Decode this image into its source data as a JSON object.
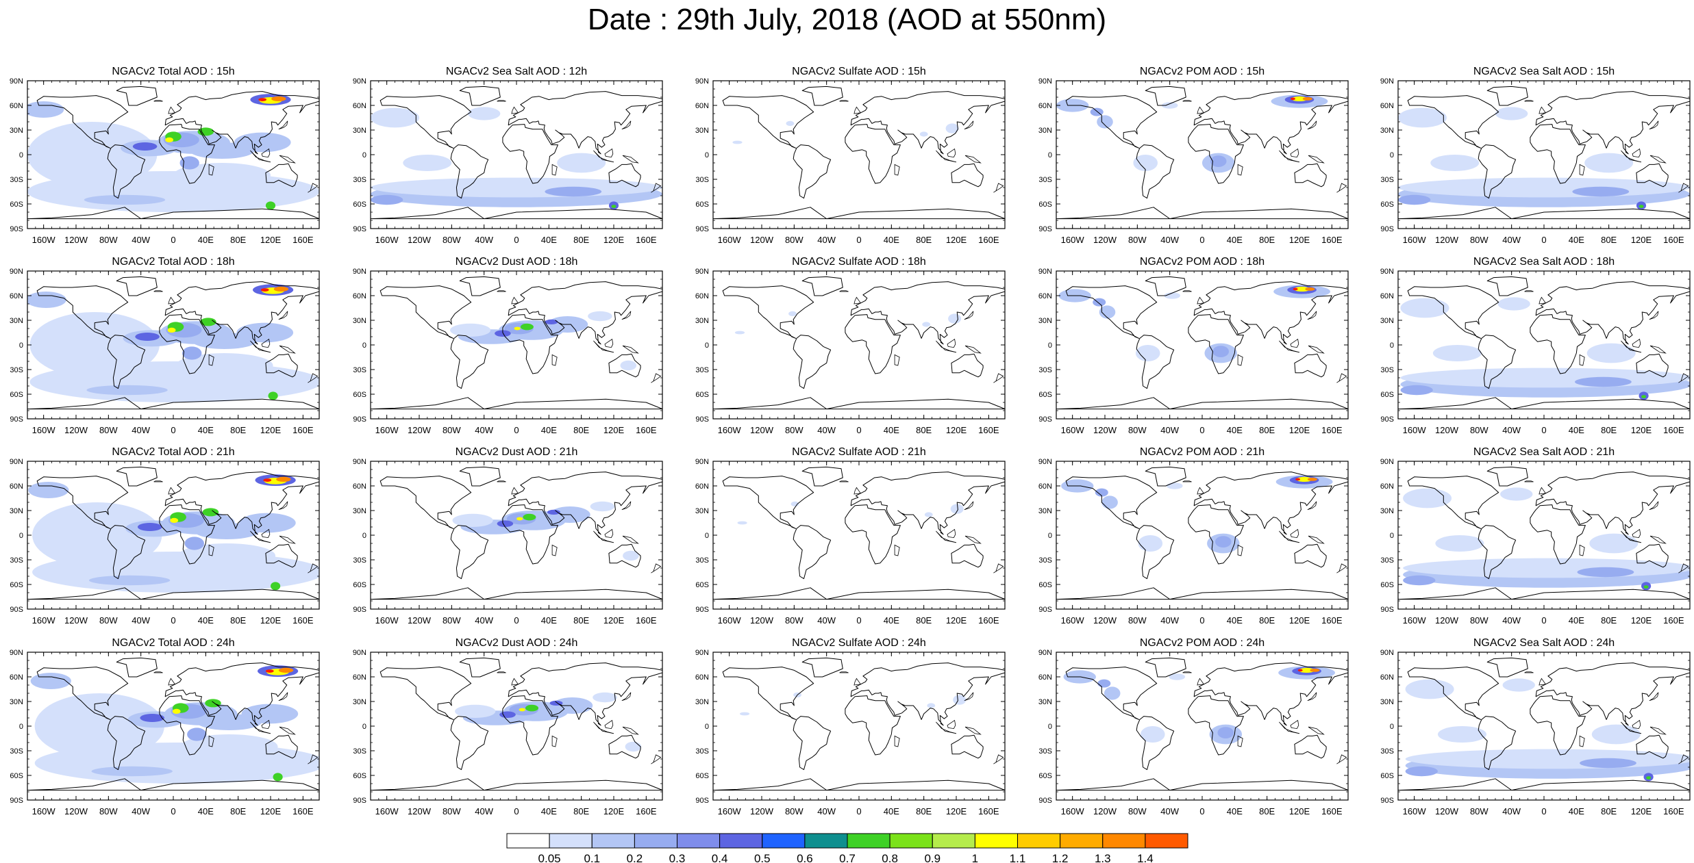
{
  "title": "Date : 29th July, 2018 (AOD at 550nm)",
  "lat_ticks": [
    "90N",
    "60N",
    "30N",
    "0",
    "30S",
    "60S",
    "90S"
  ],
  "lon_ticks": [
    "160W",
    "120W",
    "80W",
    "40W",
    "0",
    "40E",
    "80E",
    "120E",
    "160E"
  ],
  "lon_tick_values": [
    -160,
    -120,
    -80,
    -40,
    0,
    40,
    80,
    120,
    160
  ],
  "lat_tick_values": [
    90,
    60,
    30,
    0,
    -30,
    -60,
    -90
  ],
  "rows": [
    [
      "NGACv2 Total AOD : 15h",
      "NGACv2 Sea Salt  AOD : 12h",
      "NGACv2 Sulfate AOD : 15h",
      "NGACv2 POM AOD : 15h",
      "NGACv2 Sea Salt  AOD : 15h"
    ],
    [
      "NGACv2 Total AOD : 18h",
      "NGACv2 Dust AOD : 18h",
      "NGACv2 Sulfate AOD : 18h",
      "NGACv2 POM AOD : 18h",
      "NGACv2 Sea Salt  AOD : 18h"
    ],
    [
      "NGACv2 Total AOD : 21h",
      "NGACv2 Dust AOD : 21h",
      "NGACv2 Sulfate AOD : 21h",
      "NGACv2 POM AOD : 21h",
      "NGACv2 Sea Salt  AOD : 21h"
    ],
    [
      "NGACv2 Total AOD : 24h",
      "NGACv2 Dust AOD : 24h",
      "NGACv2 Sulfate AOD : 24h",
      "NGACv2 POM AOD : 24h",
      "NGACv2 Sea Salt  AOD : 24h"
    ]
  ],
  "colorbar": {
    "labels": [
      "0.05",
      "0.1",
      "0.2",
      "0.3",
      "0.4",
      "0.5",
      "0.6",
      "0.7",
      "0.8",
      "0.9",
      "1",
      "1.1",
      "1.2",
      "1.3",
      "1.4"
    ],
    "colors": [
      "#ffffff",
      "#d4e0fb",
      "#b3c6f5",
      "#97acf0",
      "#7f8deb",
      "#5d65e2",
      "#1f63ff",
      "#0e8f8f",
      "#3ed126",
      "#7be21a",
      "#b5ec4c",
      "#ffff00",
      "#ffcc00",
      "#ffab00",
      "#ff8800",
      "#ff5a00",
      "#ff1a00"
    ]
  },
  "map_colors": {
    "c1": "#d4e0fb",
    "c2": "#b3c6f5",
    "c3": "#97acf0",
    "c4": "#5d65e2",
    "c5": "#3ed126",
    "c6": "#ffff00",
    "c7": "#ff8800",
    "c8": "#ff1a00"
  }
}
